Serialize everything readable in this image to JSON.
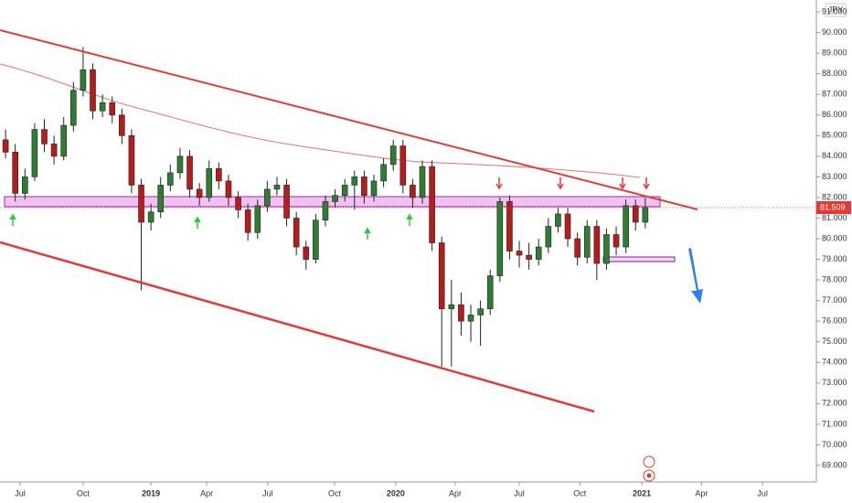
{
  "chart_data": {
    "type": "candlestick",
    "currency": "JPY",
    "x": [
      -3,
      -1,
      1,
      3,
      5,
      7,
      9,
      11,
      13,
      15,
      17,
      19,
      21,
      23,
      25,
      27,
      29,
      31,
      33,
      35,
      37,
      39,
      41,
      43,
      45,
      47,
      49,
      51,
      53,
      55,
      57,
      59,
      61,
      63,
      65,
      67,
      69,
      71,
      73,
      75,
      77,
      79,
      81,
      83,
      85,
      87,
      89,
      91,
      93,
      95,
      97,
      99,
      101,
      103,
      105,
      107,
      109,
      111,
      113,
      115,
      117,
      119,
      121,
      123,
      125,
      127,
      129
    ],
    "open": [
      84.8,
      84.2,
      82.2,
      83.0,
      85.3,
      84.6,
      84.0,
      85.5,
      87.2,
      88.2,
      86.2,
      86.6,
      86.0,
      85.0,
      82.6,
      80.8,
      81.3,
      82.6,
      83.2,
      84.0,
      82.4,
      82.0,
      83.4,
      82.8,
      82.0,
      81.4,
      80.3,
      81.6,
      82.4,
      82.6,
      81.0,
      79.6,
      79.0,
      80.9,
      81.8,
      82.1,
      82.6,
      83.0,
      82.1,
      82.8,
      83.6,
      84.5,
      82.6,
      82.0,
      83.5,
      79.8,
      76.6,
      76.8,
      76.0,
      76.3,
      76.6,
      78.2,
      81.8,
      79.4,
      79.2,
      79.0,
      79.6,
      80.6,
      81.2,
      80.0,
      79.1,
      80.6,
      78.8,
      80.2,
      79.6,
      81.6,
      80.8
    ],
    "high": [
      85.3,
      84.6,
      83.4,
      85.6,
      85.8,
      85.0,
      85.9,
      87.6,
      89.3,
      88.5,
      87.0,
      86.9,
      86.3,
      85.3,
      82.9,
      81.7,
      83.0,
      83.6,
      84.4,
      84.3,
      82.7,
      83.8,
      83.7,
      83.1,
      82.3,
      81.7,
      81.9,
      82.8,
      83.0,
      82.9,
      81.3,
      79.9,
      81.2,
      82.1,
      82.4,
      82.9,
      83.3,
      83.3,
      83.1,
      83.9,
      84.8,
      84.8,
      82.9,
      83.8,
      83.8,
      80.1,
      78.0,
      77.4,
      76.8,
      77.0,
      78.5,
      82.0,
      82.1,
      79.9,
      79.8,
      80.0,
      81.0,
      81.5,
      81.5,
      80.3,
      80.9,
      80.9,
      80.5,
      80.6,
      81.9,
      81.9,
      82.0
    ],
    "low": [
      83.9,
      81.8,
      81.9,
      82.8,
      84.2,
      83.6,
      83.8,
      85.2,
      86.9,
      85.8,
      85.9,
      85.6,
      84.6,
      82.2,
      77.5,
      80.4,
      81.0,
      82.3,
      82.9,
      82.0,
      81.6,
      81.8,
      82.4,
      81.6,
      81.0,
      79.9,
      80.0,
      81.3,
      82.1,
      80.6,
      79.2,
      78.5,
      78.8,
      80.6,
      81.5,
      81.8,
      81.4,
      81.7,
      81.8,
      82.5,
      83.3,
      82.2,
      81.5,
      81.7,
      79.4,
      73.8,
      73.8,
      75.3,
      75.0,
      74.8,
      76.3,
      77.9,
      79.0,
      78.6,
      78.5,
      78.7,
      79.3,
      80.3,
      79.6,
      78.7,
      78.8,
      78.0,
      78.5,
      79.2,
      79.3,
      80.4,
      80.5
    ],
    "close": [
      84.2,
      82.2,
      83.0,
      85.3,
      84.6,
      84.0,
      85.5,
      87.2,
      88.2,
      86.2,
      86.6,
      86.0,
      85.0,
      82.6,
      80.8,
      81.3,
      82.6,
      83.2,
      84.0,
      82.4,
      82.0,
      83.4,
      82.8,
      82.0,
      81.4,
      80.3,
      81.6,
      82.4,
      82.6,
      81.0,
      79.6,
      79.0,
      80.9,
      81.8,
      82.1,
      82.6,
      83.0,
      82.1,
      82.8,
      83.6,
      84.5,
      82.6,
      82.0,
      83.5,
      79.8,
      76.6,
      76.8,
      76.0,
      76.3,
      76.6,
      78.2,
      81.8,
      79.4,
      79.2,
      79.0,
      79.6,
      80.6,
      81.2,
      80.0,
      79.1,
      80.6,
      78.8,
      80.2,
      79.6,
      81.6,
      80.8,
      81.509
    ],
    "up_color": "#2e7d32",
    "down_color": "#b71c1c",
    "last_price": {
      "value": 81.509,
      "label": "81.509"
    },
    "xlim": [
      -4.15,
      164.3
    ],
    "xticks": [
      {
        "value": 0,
        "label": "Jul"
      },
      {
        "value": 13,
        "label": "Oct"
      },
      {
        "value": 27,
        "label": "2019"
      },
      {
        "value": 38.5,
        "label": "Apr"
      },
      {
        "value": 51.1,
        "label": "Jul"
      },
      {
        "value": 64.9,
        "label": "Oct"
      },
      {
        "value": 77.5,
        "label": "2020"
      },
      {
        "value": 89.8,
        "label": "Apr"
      },
      {
        "value": 103,
        "label": "Jul"
      },
      {
        "value": 115.5,
        "label": "Oct"
      },
      {
        "value": 128.3,
        "label": "2021"
      },
      {
        "value": 140.6,
        "label": "Apr"
      },
      {
        "value": 153.2,
        "label": "Jul"
      }
    ],
    "ylim": [
      68.2,
      91.58
    ],
    "yticks": [
      {
        "value": 69,
        "label": "69.000"
      },
      {
        "value": 70,
        "label": "70.000"
      },
      {
        "value": 71,
        "label": "71.000"
      },
      {
        "value": 72,
        "label": "72.000"
      },
      {
        "value": 73,
        "label": "73.000"
      },
      {
        "value": 74,
        "label": "74.000"
      },
      {
        "value": 75,
        "label": "75.000"
      },
      {
        "value": 76,
        "label": "76.000"
      },
      {
        "value": 77,
        "label": "77.000"
      },
      {
        "value": 78,
        "label": "78.000"
      },
      {
        "value": 79,
        "label": "79.000"
      },
      {
        "value": 80,
        "label": "80.000"
      },
      {
        "value": 81,
        "label": "81.000"
      },
      {
        "value": 82,
        "label": "82.000"
      },
      {
        "value": 83,
        "label": "83.000"
      },
      {
        "value": 84,
        "label": "84.000"
      },
      {
        "value": 85,
        "label": "85.000"
      },
      {
        "value": 86,
        "label": "86.000"
      },
      {
        "value": 87,
        "label": "87.000"
      },
      {
        "value": 88,
        "label": "88.000"
      },
      {
        "value": 89,
        "label": "89.000"
      },
      {
        "value": 90,
        "label": "90.000"
      },
      {
        "value": 91,
        "label": "91.000"
      }
    ]
  }
}
